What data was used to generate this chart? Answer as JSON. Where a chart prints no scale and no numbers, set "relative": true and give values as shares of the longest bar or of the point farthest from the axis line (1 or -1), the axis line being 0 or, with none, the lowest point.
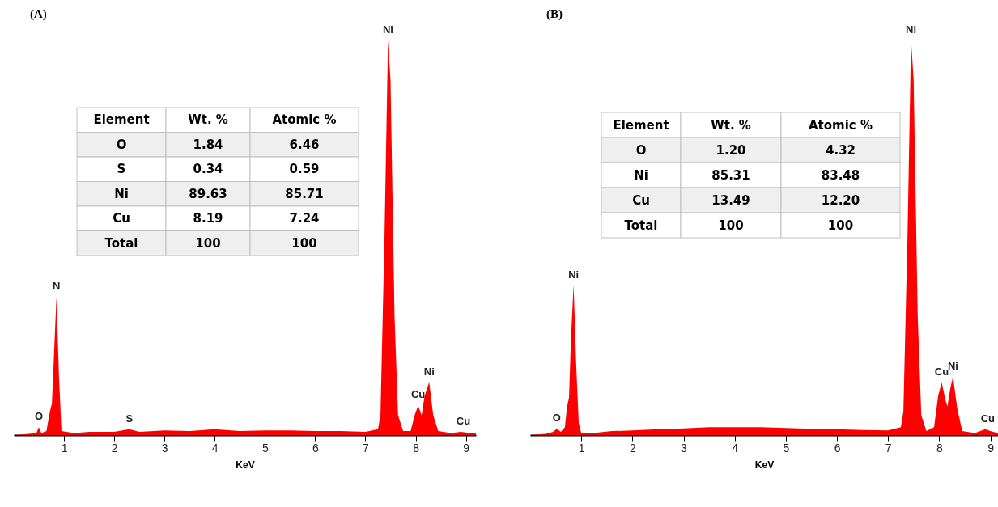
{
  "chart_data": [
    {
      "type": "area",
      "title": "(A)",
      "xlabel": "KeV",
      "relative": true,
      "xlim": [
        0,
        9.2
      ],
      "xticks": [
        1,
        2,
        3,
        4,
        5,
        6,
        7,
        8,
        9
      ],
      "x": [
        0,
        0.3,
        0.45,
        0.5,
        0.55,
        0.65,
        0.72,
        0.76,
        0.8,
        0.85,
        0.9,
        0.95,
        1.2,
        1.5,
        2.0,
        2.3,
        2.5,
        3.0,
        3.5,
        4.0,
        4.5,
        5.0,
        5.5,
        6.0,
        6.5,
        7.0,
        7.25,
        7.3,
        7.38,
        7.45,
        7.5,
        7.58,
        7.65,
        7.75,
        7.9,
        7.98,
        8.05,
        8.12,
        8.18,
        8.27,
        8.35,
        8.45,
        8.7,
        8.9,
        9.1,
        9.2
      ],
      "series": [
        {
          "color": "#ff0000",
          "values": [
            0,
            0.003,
            0.005,
            0.02,
            0.005,
            0.01,
            0.06,
            0.08,
            0.2,
            0.35,
            0.15,
            0.01,
            0.005,
            0.008,
            0.008,
            0.015,
            0.008,
            0.012,
            0.01,
            0.015,
            0.01,
            0.012,
            0.012,
            0.01,
            0.01,
            0.008,
            0.015,
            0.05,
            0.5,
            1,
            0.9,
            0.3,
            0.05,
            0.01,
            0.01,
            0.05,
            0.075,
            0.05,
            0.1,
            0.134,
            0.05,
            0.01,
            0.005,
            0.008,
            0.005,
            0.005
          ]
        }
      ],
      "annotations": [
        {
          "text": "O",
          "x": 0.5,
          "y": 0.02
        },
        {
          "text": "N",
          "x": 0.85,
          "y": 0.35
        },
        {
          "text": "S",
          "x": 2.3,
          "y": 0.015
        },
        {
          "text": "Ni",
          "x": 7.45,
          "y": 1
        },
        {
          "text": "Cu",
          "x": 8.05,
          "y": 0.075
        },
        {
          "text": "Ni",
          "x": 8.27,
          "y": 0.134
        },
        {
          "text": "Cu",
          "x": 8.95,
          "y": 0.008
        },
        "Element\tWt. %\tAtomic %",
        "O\t1.84\t6.46",
        "S\t0.34\t0.59",
        "Ni\t89.63\t85.71",
        "Cu\t8.19\t7.24",
        "Total\t100\t100"
      ]
    },
    {
      "type": "area",
      "title": "(B)",
      "xlabel": "KeV",
      "relative": true,
      "xlim": [
        0,
        9.15
      ],
      "xticks": [
        1,
        2,
        3,
        4,
        5,
        6,
        7,
        8,
        9
      ],
      "x": [
        0,
        0.3,
        0.45,
        0.52,
        0.6,
        0.68,
        0.72,
        0.76,
        0.8,
        0.85,
        0.9,
        0.95,
        1.0,
        1.3,
        1.6,
        2.0,
        2.5,
        3.0,
        3.5,
        4.0,
        4.5,
        5.0,
        5.5,
        6.0,
        6.5,
        7.0,
        7.25,
        7.3,
        7.38,
        7.45,
        7.5,
        7.58,
        7.65,
        7.75,
        7.9,
        7.98,
        8.05,
        8.12,
        8.16,
        8.22,
        8.27,
        8.35,
        8.45,
        8.7,
        8.8,
        8.9,
        9.0,
        9.15
      ],
      "series": [
        {
          "color": "#ff0000",
          "values": [
            0,
            0.003,
            0.008,
            0.016,
            0.008,
            0.02,
            0.07,
            0.095,
            0.25,
            0.38,
            0.18,
            0.03,
            0.005,
            0.006,
            0.01,
            0.012,
            0.015,
            0.017,
            0.02,
            0.02,
            0.02,
            0.018,
            0.016,
            0.015,
            0.013,
            0.012,
            0.02,
            0.06,
            0.5,
            1,
            0.9,
            0.3,
            0.05,
            0.01,
            0.02,
            0.1,
            0.133,
            0.09,
            0.072,
            0.12,
            0.148,
            0.07,
            0.01,
            0.005,
            0.01,
            0.015,
            0.01,
            0.005
          ]
        }
      ],
      "annotations": [
        {
          "text": "O",
          "x": 0.52,
          "y": 0.016
        },
        {
          "text": "Ni",
          "x": 0.85,
          "y": 0.38
        },
        {
          "text": "Ni",
          "x": 7.45,
          "y": 1
        },
        {
          "text": "Cu",
          "x": 8.05,
          "y": 0.133
        },
        {
          "text": "Ni",
          "x": 8.27,
          "y": 0.148
        },
        {
          "text": "Cu",
          "x": 8.95,
          "y": 0.015
        },
        "Element\tWt. %\tAtomic %",
        "O\t1.20\t4.32",
        "Ni\t85.31\t83.48",
        "Cu\t13.49\t12.20",
        "Total\t100\t100"
      ]
    }
  ]
}
